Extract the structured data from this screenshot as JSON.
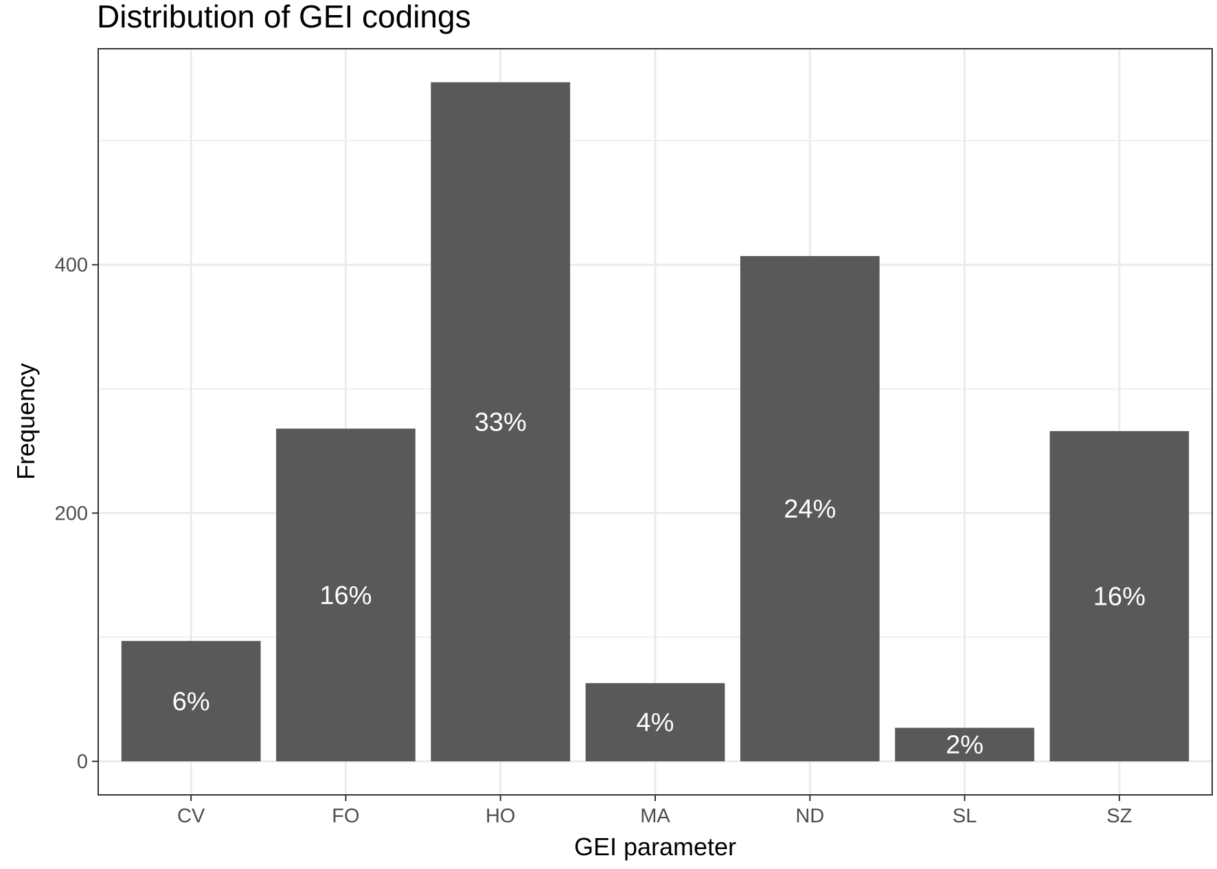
{
  "chart_data": {
    "type": "bar",
    "title": "Distribution of GEI codings",
    "xlabel": "GEI parameter",
    "ylabel": "Frequency",
    "categories": [
      "CV",
      "FO",
      "HO",
      "MA",
      "ND",
      "SL",
      "SZ"
    ],
    "values": [
      97,
      268,
      547,
      63,
      407,
      27,
      266
    ],
    "bar_labels": [
      "6%",
      "16%",
      "33%",
      "4%",
      "24%",
      "2%",
      "16%"
    ],
    "ylim": [
      -27,
      574
    ],
    "yticks": [
      0,
      200,
      400
    ],
    "ytick_labels": [
      "0",
      "200",
      "400"
    ],
    "grid": true,
    "legend": "none",
    "bar_color": "#595959",
    "label_color": "#ffffff",
    "grid_color": "#ebebeb"
  }
}
